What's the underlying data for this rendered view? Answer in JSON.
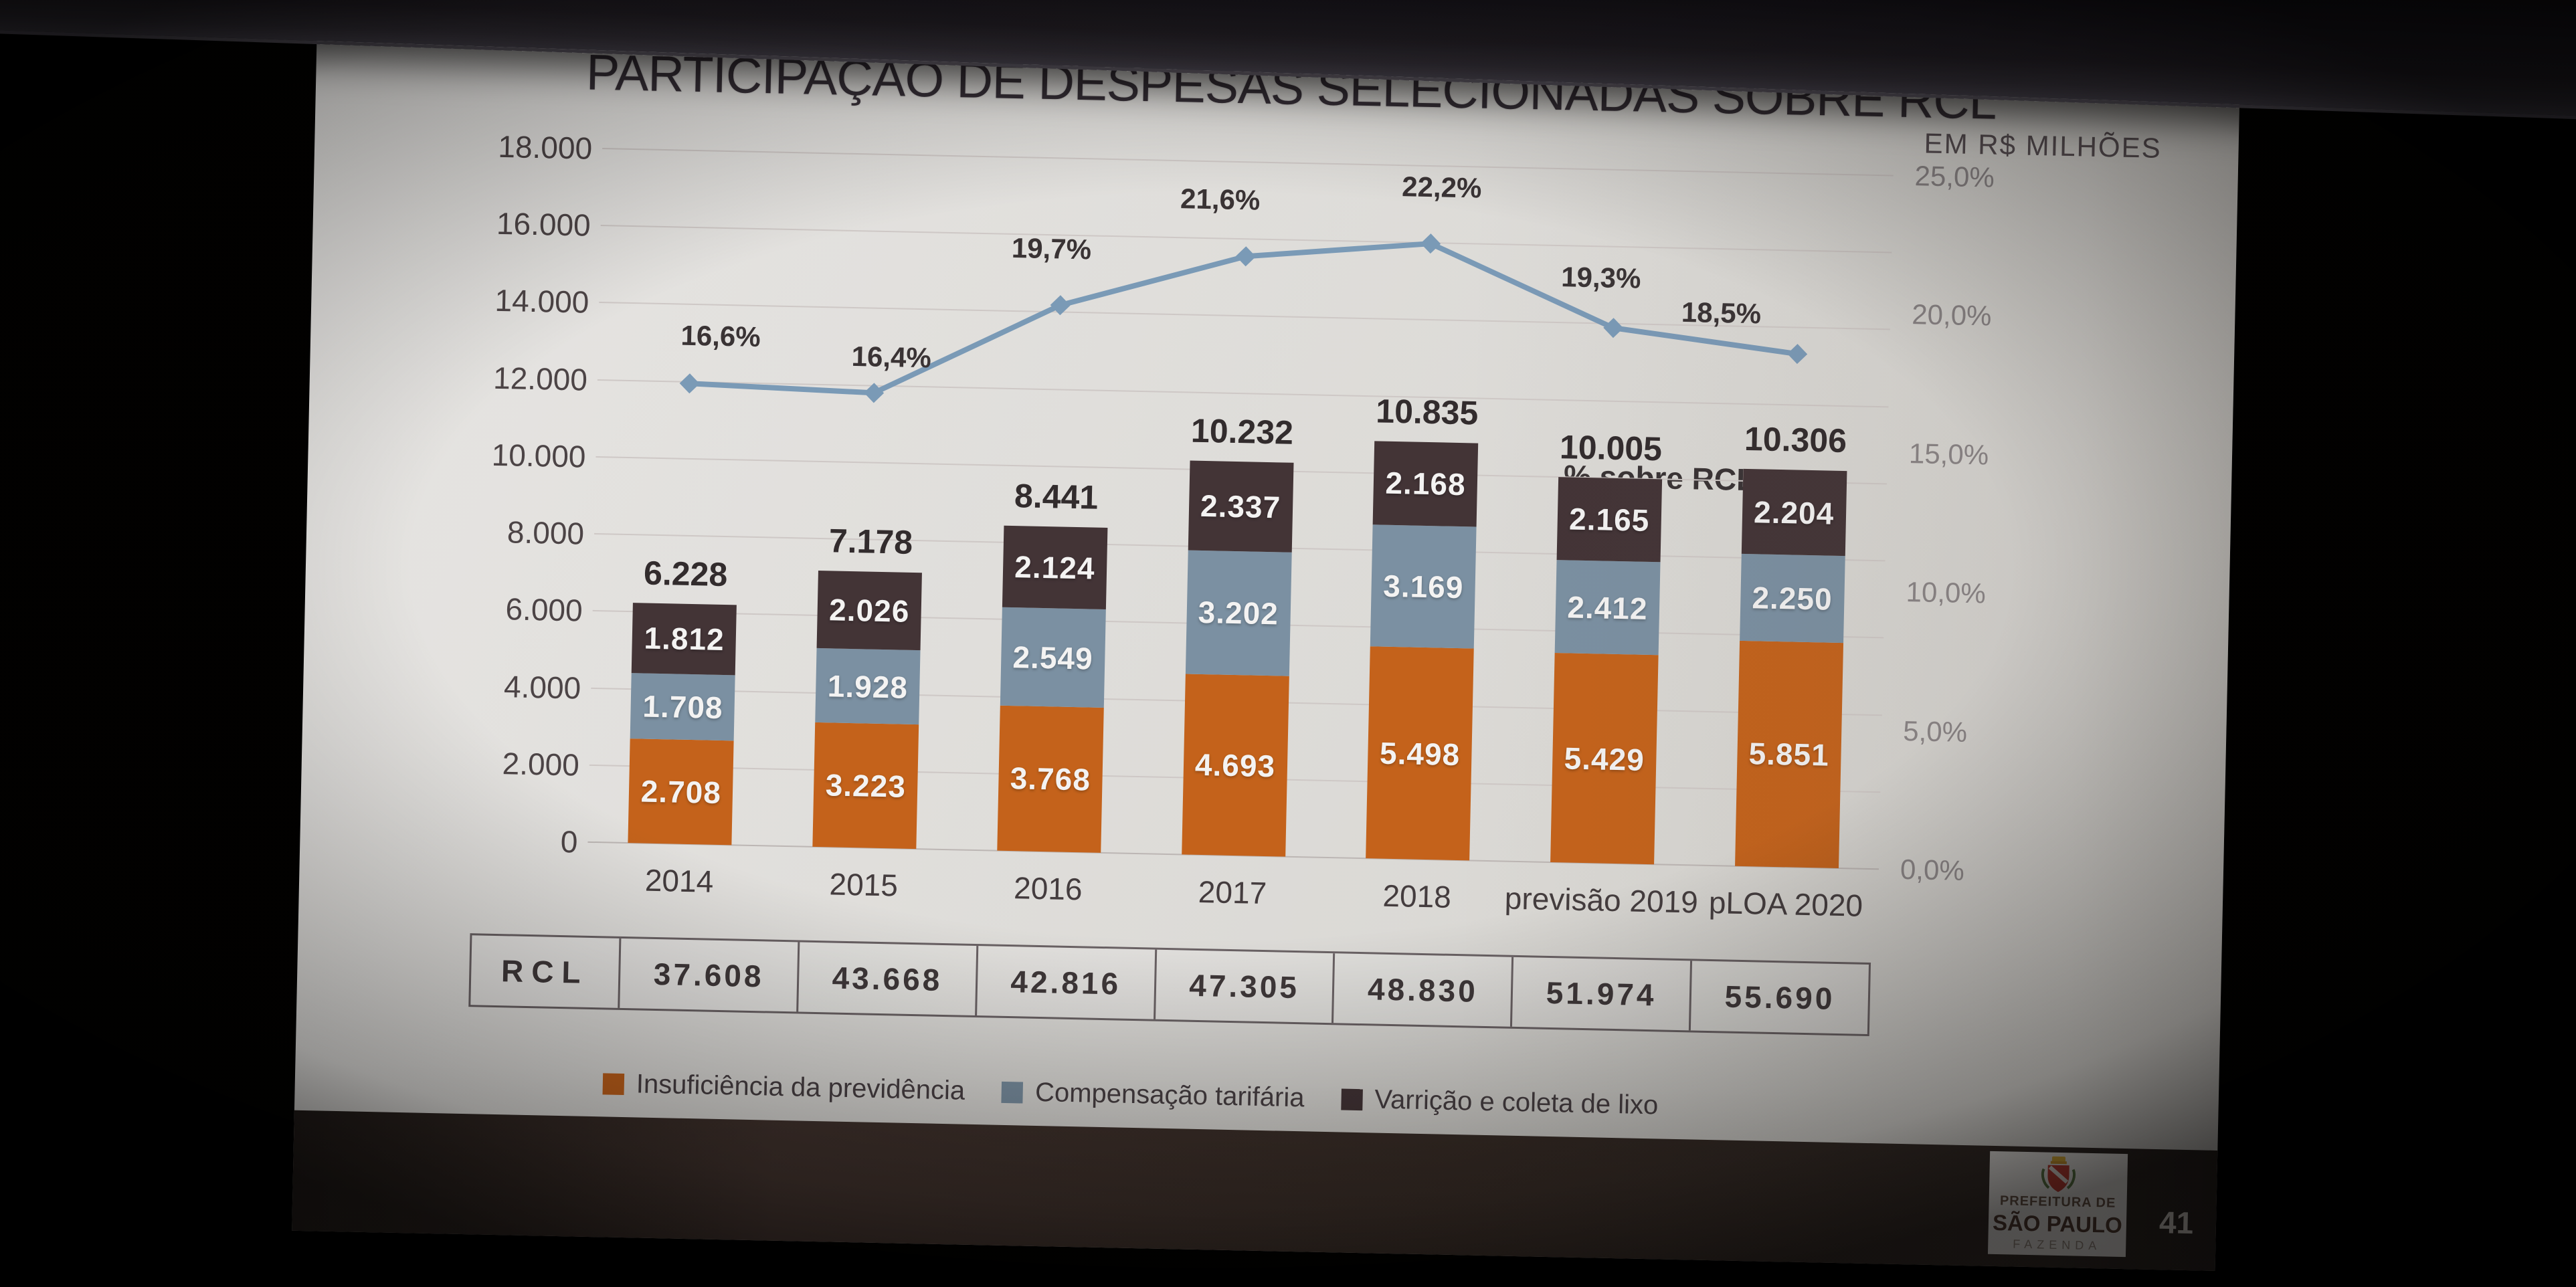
{
  "chart_data": {
    "type": "bar",
    "variant": "stacked-columns-with-percentage-line",
    "title": "PARTICIPAÇÃO DE DESPESAS SELECIONADAS SOBRE RCL",
    "units_label": "EM  R$ MILHÕES",
    "categories": [
      "2014",
      "2015",
      "2016",
      "2017",
      "2018",
      "previsão 2019",
      "pLOA 2020"
    ],
    "series": [
      {
        "name": "Insuficiência da previdência",
        "color": "#cd671c",
        "values": [
          2708,
          3223,
          3768,
          4693,
          5498,
          5429,
          5851
        ],
        "labels": [
          "2.708",
          "3.223",
          "3.768",
          "4.693",
          "5.498",
          "5.429",
          "5.851"
        ]
      },
      {
        "name": "Compensação tarifária",
        "color": "#8097aa",
        "values": [
          1708,
          1928,
          2549,
          3202,
          3169,
          2412,
          2250
        ],
        "labels": [
          "1.708",
          "1.928",
          "2.549",
          "3.202",
          "3.169",
          "2.412",
          "2.250"
        ]
      },
      {
        "name": "Varrição e coleta de lixo",
        "color": "#453639",
        "values": [
          1812,
          2026,
          2124,
          2337,
          2168,
          2165,
          2204
        ],
        "labels": [
          "1.812",
          "2.026",
          "2.124",
          "2.337",
          "2.168",
          "2.165",
          "2.204"
        ]
      }
    ],
    "totals": [
      6228,
      7178,
      8441,
      10232,
      10835,
      10005,
      10306
    ],
    "totals_labels": [
      "6.228",
      "7.178",
      "8.441",
      "10.232",
      "10.835",
      "10.005",
      "10.306"
    ],
    "line": {
      "name": "% sobre RCL",
      "color": "#7fa1c0",
      "values": [
        16.6,
        16.4,
        19.7,
        21.6,
        22.2,
        19.3,
        18.5
      ],
      "labels": [
        "16,6%",
        "16,4%",
        "19,7%",
        "21,6%",
        "22,2%",
        "19,3%",
        "18,5%"
      ]
    },
    "y_left": {
      "min": 0,
      "max": 18000,
      "step": 2000,
      "ticks": [
        "0",
        "2.000",
        "4.000",
        "6.000",
        "8.000",
        "10.000",
        "12.000",
        "14.000",
        "16.000",
        "18.000"
      ]
    },
    "y_right": {
      "min": 0,
      "max": 25,
      "step": 5,
      "ticks": [
        "0,0%",
        "5,0%",
        "10,0%",
        "15,0%",
        "20,0%",
        "25,0%"
      ]
    },
    "grid": true,
    "legend_position": "bottom"
  },
  "rcl": {
    "label": "RCL",
    "values": [
      37608,
      43668,
      42816,
      47305,
      48830,
      51974,
      55690
    ],
    "labels": [
      "37.608",
      "43.668",
      "42.816",
      "47.305",
      "48.830",
      "51.974",
      "55.690"
    ]
  },
  "footer": {
    "logo_line1": "PREFEITURA DE",
    "logo_line2": "SÃO PAULO",
    "logo_line3": "FAZENDA",
    "page_number": "41"
  },
  "colors": {
    "orange": "#cd671c",
    "blue_gray": "#8097aa",
    "dark_brown": "#453639",
    "line_blue": "#7fa1c0",
    "slide_bg": "#ecebe8",
    "footer_band": "#3a2e28"
  }
}
